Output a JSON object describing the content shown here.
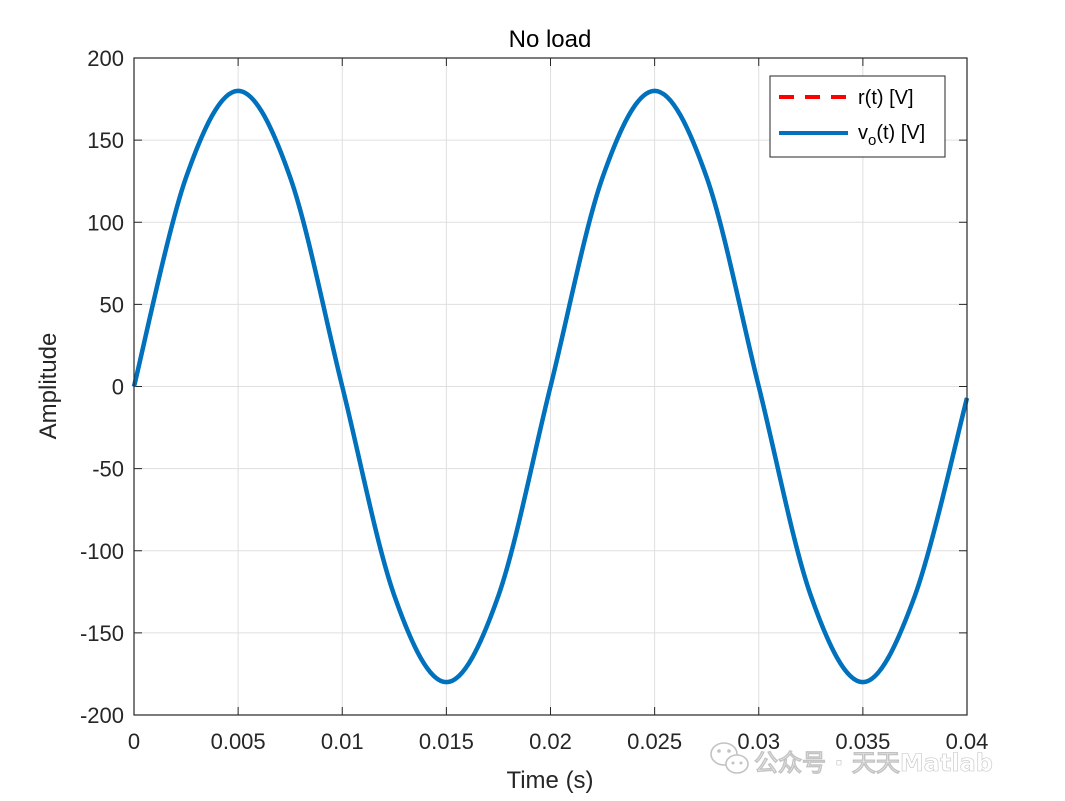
{
  "chart_data": {
    "type": "line",
    "title": "No load",
    "xlabel": "Time (s)",
    "ylabel": "Amplitude",
    "xlim": [
      0,
      0.04
    ],
    "ylim": [
      -200,
      200
    ],
    "x_ticks": [
      0,
      0.005,
      0.01,
      0.015,
      0.02,
      0.025,
      0.03,
      0.035,
      0.04
    ],
    "x_tick_labels": [
      "0",
      "0.005",
      "0.01",
      "0.015",
      "0.02",
      "0.025",
      "0.03",
      "0.035",
      "0.04"
    ],
    "y_ticks": [
      -200,
      -150,
      -100,
      -50,
      0,
      50,
      100,
      150,
      200
    ],
    "y_tick_labels": [
      "-200",
      "-150",
      "-100",
      "-50",
      "0",
      "50",
      "100",
      "150",
      "200"
    ],
    "grid": true,
    "legend_position": "top-right",
    "series": [
      {
        "name": "r(t) [V]",
        "style": "dashed",
        "color": "#ff0000",
        "x": [
          0,
          0.0025,
          0.005,
          0.0075,
          0.01,
          0.0125,
          0.015,
          0.0175,
          0.02,
          0.0225,
          0.025,
          0.0275,
          0.03,
          0.0325,
          0.035,
          0.0375,
          0.04
        ],
        "y": [
          0,
          127.3,
          180,
          127.3,
          0,
          -127.3,
          -180,
          -127.3,
          0,
          127.3,
          180,
          127.3,
          0,
          -127.3,
          -180,
          -127.3,
          -7
        ]
      },
      {
        "name": "v",
        "name_subscript": "o",
        "name_suffix": "(t) [V]",
        "style": "solid",
        "color": "#0072bd",
        "x": [
          0,
          0.0025,
          0.005,
          0.0075,
          0.01,
          0.0125,
          0.015,
          0.0175,
          0.02,
          0.0225,
          0.025,
          0.0275,
          0.03,
          0.0325,
          0.035,
          0.0375,
          0.04
        ],
        "y": [
          0,
          127.3,
          180,
          127.3,
          0,
          -127.3,
          -180,
          -127.3,
          0,
          127.3,
          180,
          127.3,
          0,
          -127.3,
          -180,
          -127.3,
          -7
        ]
      }
    ]
  },
  "watermark": {
    "text": "公众号 · 天天Matlab",
    "icon": "wechat-icon"
  }
}
